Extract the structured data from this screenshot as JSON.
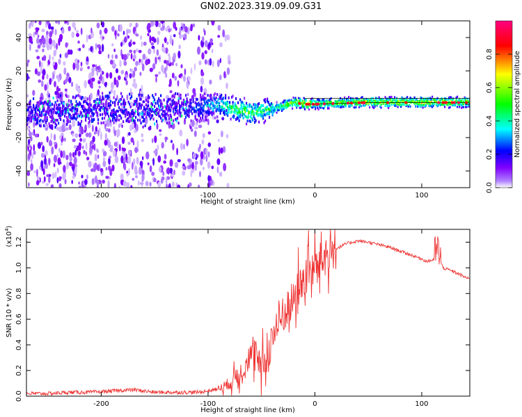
{
  "title": "GN02.2023.319.09.09.G31",
  "chart_data": [
    {
      "type": "heatmap",
      "xlabel": "Height of straight line (km)",
      "ylabel": "Frequency (Hz)",
      "xlim": [
        -270,
        145
      ],
      "ylim": [
        -50,
        50
      ],
      "xticks": [
        -200,
        -100,
        0,
        100
      ],
      "xtick_labels": [
        "-200",
        "-100",
        "0",
        "100"
      ],
      "yticks": [
        -40,
        -20,
        0,
        20,
        40
      ],
      "ytick_labels": [
        "-40",
        "-20",
        "0",
        "20",
        "40"
      ],
      "colorbar": {
        "label": "Normalized spectral amplitude",
        "range": [
          0.0,
          1.0
        ],
        "ticks": [
          0.0,
          0.2,
          0.4,
          0.6,
          0.8
        ],
        "tick_labels": [
          "0.0",
          "0.2",
          "0.4",
          "0.6",
          "0.8"
        ],
        "colors": [
          "#ffffff",
          "#8000ff",
          "#0000ff",
          "#00ffff",
          "#00ff00",
          "#ffff00",
          "#ff0000",
          "#ff0080"
        ]
      },
      "ridge": {
        "description_x": [
          -270,
          -200,
          -150,
          -110,
          -90,
          -75,
          -60,
          -50,
          -40,
          -30,
          -20,
          -10,
          0,
          20,
          50,
          100,
          145
        ],
        "frequency": [
          -5,
          -3,
          -4,
          -2,
          0,
          -3,
          -5,
          -4,
          -3,
          -1,
          1,
          0,
          0,
          0.5,
          1,
          1,
          1
        ],
        "amplitude": [
          0.1,
          0.12,
          0.15,
          0.3,
          0.45,
          0.55,
          0.6,
          0.5,
          0.5,
          0.6,
          0.7,
          0.85,
          0.6,
          0.65,
          0.7,
          0.75,
          0.65
        ]
      }
    },
    {
      "type": "line",
      "xlabel": "Height of straight line (km)",
      "ylabel": "SNR (10 * v/v)",
      "scale_label_prefix": "(x10",
      "scale_label_exp": "4",
      "scale_label_suffix": ")",
      "xlim": [
        -270,
        145
      ],
      "ylim": [
        0.0,
        1.3
      ],
      "xticks": [
        -200,
        -100,
        0,
        100
      ],
      "xtick_labels": [
        "-200",
        "-100",
        "0",
        "100"
      ],
      "yticks": [
        0.0,
        0.2,
        0.4,
        0.6,
        0.8,
        1.0,
        1.2
      ],
      "ytick_labels": [
        "0.0",
        "0.2",
        "0.4",
        "0.6",
        "0.8",
        "1.0",
        "1.2"
      ],
      "series": [
        {
          "color": "#ee3333",
          "x": [
            -270,
            -250,
            -230,
            -210,
            -190,
            -170,
            -150,
            -130,
            -110,
            -100,
            -90,
            -80,
            -70,
            -65,
            -60,
            -55,
            -50,
            -45,
            -40,
            -35,
            -30,
            -25,
            -20,
            -15,
            -10,
            -5,
            0,
            5,
            10,
            15,
            20,
            25,
            30,
            35,
            40,
            50,
            60,
            70,
            80,
            90,
            100,
            105,
            110,
            115,
            120,
            130,
            145
          ],
          "y": [
            0.02,
            0.02,
            0.03,
            0.03,
            0.04,
            0.05,
            0.03,
            0.03,
            0.03,
            0.04,
            0.06,
            0.1,
            0.18,
            0.25,
            0.32,
            0.28,
            0.22,
            0.3,
            0.45,
            0.55,
            0.62,
            0.7,
            0.75,
            0.85,
            0.9,
            0.98,
            1.0,
            1.05,
            1.1,
            1.12,
            1.15,
            1.17,
            1.19,
            1.2,
            1.21,
            1.2,
            1.18,
            1.16,
            1.13,
            1.1,
            1.07,
            1.05,
            1.06,
            1.1,
            1.0,
            0.97,
            0.91
          ]
        }
      ]
    }
  ]
}
